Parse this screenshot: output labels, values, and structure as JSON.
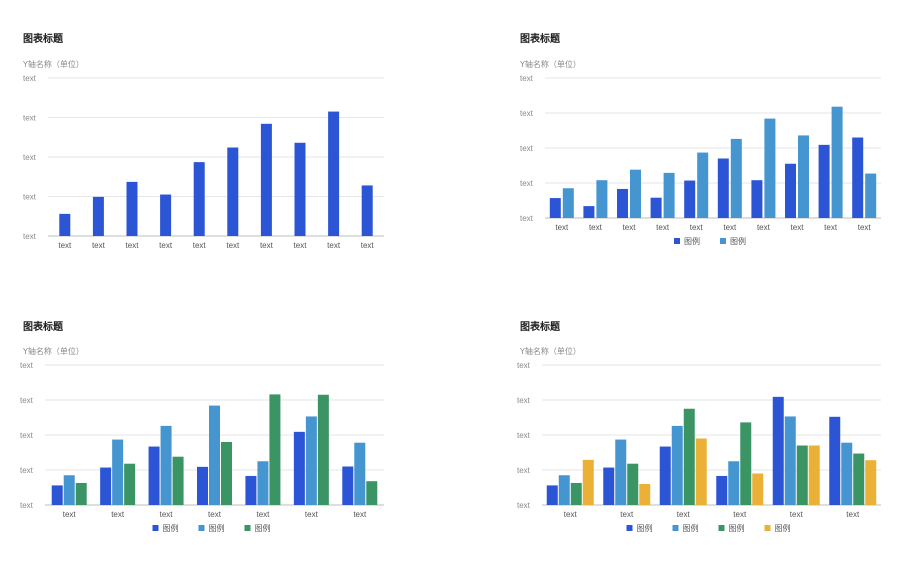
{
  "chart_data": [
    {
      "type": "bar",
      "title": "图表标题",
      "ylabel": "Y轴名称（单位）",
      "ytick_labels": [
        "text",
        "text",
        "text",
        "text",
        "text"
      ],
      "categories": [
        "text",
        "text",
        "text",
        "text",
        "text",
        "text",
        "text",
        "text",
        "text",
        "text"
      ],
      "ylim": [
        0,
        4
      ],
      "grid": true,
      "legend": "none",
      "series": [
        {
          "color": "#2B55D4",
          "values": [
            0.56,
            0.99,
            1.37,
            1.05,
            1.87,
            2.24,
            2.84,
            2.36,
            3.15,
            1.28
          ]
        }
      ]
    },
    {
      "type": "bar",
      "title": "图表标题",
      "ylabel": "Y轴名称（单位）",
      "ytick_labels": [
        "text",
        "text",
        "text",
        "text",
        "text"
      ],
      "categories": [
        "text",
        "text",
        "text",
        "text",
        "text",
        "text",
        "text",
        "text",
        "text",
        "text"
      ],
      "ylim": [
        0,
        4
      ],
      "grid": true,
      "legend": "bottom-center",
      "legend_labels": [
        "图例",
        "图例"
      ],
      "series": [
        {
          "color": "#2B55D4",
          "values": [
            0.57,
            0.34,
            0.83,
            0.58,
            1.07,
            1.7,
            1.08,
            1.55,
            2.09,
            2.3
          ]
        },
        {
          "color": "#4596D0",
          "values": [
            0.85,
            1.08,
            1.38,
            1.29,
            1.87,
            2.26,
            2.84,
            2.36,
            3.18,
            1.27
          ]
        }
      ]
    },
    {
      "type": "bar",
      "title": "图表标题",
      "ylabel": "Y轴名称（单位）",
      "ytick_labels": [
        "text",
        "text",
        "text",
        "text",
        "text"
      ],
      "categories": [
        "text",
        "text",
        "text",
        "text",
        "text",
        "text",
        "text"
      ],
      "ylim": [
        0,
        4
      ],
      "grid": true,
      "legend": "bottom-center",
      "legend_labels": [
        "图例",
        "图例",
        "图例"
      ],
      "series": [
        {
          "color": "#2B55D4",
          "values": [
            0.56,
            1.07,
            1.67,
            1.09,
            0.83,
            2.09,
            1.1
          ]
        },
        {
          "color": "#4596D0",
          "values": [
            0.85,
            1.87,
            2.26,
            2.84,
            1.25,
            2.53,
            1.78
          ]
        },
        {
          "color": "#3A9464",
          "values": [
            0.63,
            1.18,
            1.38,
            1.8,
            3.16,
            3.15,
            0.68
          ]
        }
      ]
    },
    {
      "type": "bar",
      "title": "图表标题",
      "ylabel": "Y轴名称（单位）",
      "ytick_labels": [
        "text",
        "text",
        "text",
        "text",
        "text"
      ],
      "categories": [
        "text",
        "text",
        "text",
        "text",
        "text",
        "text"
      ],
      "ylim": [
        0,
        4
      ],
      "grid": true,
      "legend": "bottom-center",
      "legend_labels": [
        "图例",
        "图例",
        "图例",
        "图例"
      ],
      "series": [
        {
          "color": "#2B55D4",
          "values": [
            0.56,
            1.07,
            1.67,
            0.83,
            3.09,
            2.52
          ]
        },
        {
          "color": "#4596D0",
          "values": [
            0.85,
            1.87,
            2.26,
            1.25,
            2.53,
            1.78
          ]
        },
        {
          "color": "#3A9464",
          "values": [
            0.63,
            1.18,
            2.75,
            2.36,
            1.7,
            1.47
          ]
        },
        {
          "color": "#EBB036",
          "values": [
            1.29,
            0.6,
            1.9,
            0.9,
            1.7,
            1.28
          ]
        }
      ]
    }
  ]
}
